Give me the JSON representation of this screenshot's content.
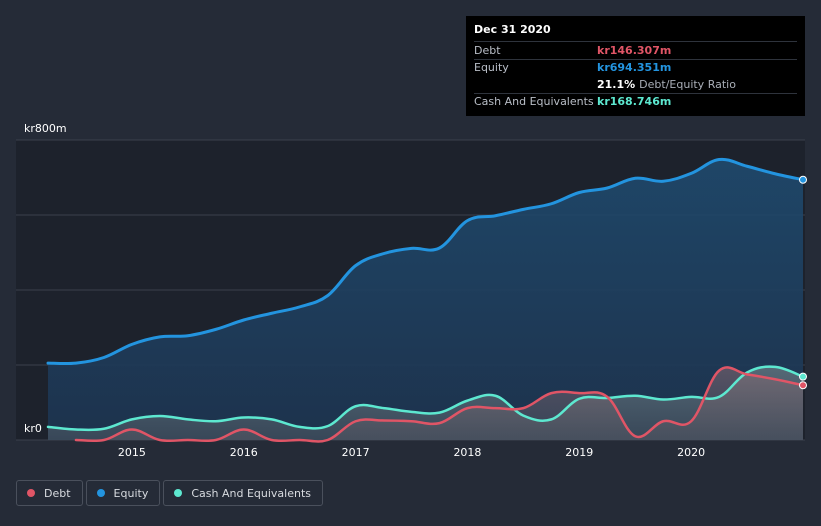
{
  "tooltip": {
    "date": "Dec 31 2020",
    "rows": [
      {
        "label": "Debt",
        "value": "kr146.307m",
        "color": "#e05566"
      },
      {
        "label": "Equity",
        "value": "kr694.351m",
        "color": "#2394df"
      },
      {
        "label": "Cash And Equivalents",
        "value": "kr168.746m",
        "color": "#5de8d0"
      }
    ],
    "ratio_pct": "21.1%",
    "ratio_label": "Debt/Equity Ratio"
  },
  "legend": [
    {
      "label": "Debt",
      "color": "#e05566"
    },
    {
      "label": "Equity",
      "color": "#2394df"
    },
    {
      "label": "Cash And Equivalents",
      "color": "#5de8d0"
    }
  ],
  "chart_data": {
    "type": "area",
    "title": "",
    "xlabel": "",
    "ylabel": "",
    "y_top_label": "kr800m",
    "y_bottom_label": "kr0",
    "ylim": [
      0,
      800
    ],
    "xlim": [
      2014.25,
      2021.0
    ],
    "x_ticks": [
      2015,
      2016,
      2017,
      2018,
      2019,
      2020
    ],
    "x_tick_labels": [
      "2015",
      "2016",
      "2017",
      "2018",
      "2019",
      "2020"
    ],
    "series": [
      {
        "name": "Equity",
        "color": "#2394df",
        "points": [
          [
            2014.25,
            205
          ],
          [
            2014.5,
            205
          ],
          [
            2014.75,
            220
          ],
          [
            2015.0,
            255
          ],
          [
            2015.25,
            275
          ],
          [
            2015.5,
            278
          ],
          [
            2015.75,
            295
          ],
          [
            2016.0,
            320
          ],
          [
            2016.25,
            338
          ],
          [
            2016.5,
            355
          ],
          [
            2016.75,
            385
          ],
          [
            2017.0,
            465
          ],
          [
            2017.25,
            497
          ],
          [
            2017.5,
            511
          ],
          [
            2017.75,
            512
          ],
          [
            2018.0,
            585
          ],
          [
            2018.25,
            598
          ],
          [
            2018.5,
            615
          ],
          [
            2018.75,
            630
          ],
          [
            2019.0,
            660
          ],
          [
            2019.25,
            672
          ],
          [
            2019.5,
            698
          ],
          [
            2019.75,
            690
          ],
          [
            2020.0,
            711
          ],
          [
            2020.25,
            748
          ],
          [
            2020.5,
            730
          ],
          [
            2020.75,
            710
          ],
          [
            2021.0,
            694
          ]
        ]
      },
      {
        "name": "Cash And Equivalents",
        "color": "#5de8d0",
        "points": [
          [
            2014.25,
            35
          ],
          [
            2014.5,
            28
          ],
          [
            2014.75,
            30
          ],
          [
            2015.0,
            55
          ],
          [
            2015.25,
            64
          ],
          [
            2015.5,
            55
          ],
          [
            2015.75,
            50
          ],
          [
            2016.0,
            60
          ],
          [
            2016.25,
            55
          ],
          [
            2016.5,
            35
          ],
          [
            2016.75,
            37
          ],
          [
            2017.0,
            90
          ],
          [
            2017.25,
            85
          ],
          [
            2017.5,
            75
          ],
          [
            2017.75,
            73
          ],
          [
            2018.0,
            105
          ],
          [
            2018.25,
            118
          ],
          [
            2018.5,
            65
          ],
          [
            2018.75,
            55
          ],
          [
            2019.0,
            110
          ],
          [
            2019.25,
            112
          ],
          [
            2019.5,
            118
          ],
          [
            2019.75,
            108
          ],
          [
            2020.0,
            115
          ],
          [
            2020.25,
            115
          ],
          [
            2020.5,
            180
          ],
          [
            2020.75,
            195
          ],
          [
            2021.0,
            169
          ]
        ]
      },
      {
        "name": "Debt",
        "color": "#e05566",
        "points": [
          [
            2014.5,
            0
          ],
          [
            2014.75,
            0
          ],
          [
            2015.0,
            28
          ],
          [
            2015.25,
            0
          ],
          [
            2015.5,
            0
          ],
          [
            2015.75,
            0
          ],
          [
            2016.0,
            28
          ],
          [
            2016.25,
            0
          ],
          [
            2016.5,
            0
          ],
          [
            2016.75,
            0
          ],
          [
            2017.0,
            50
          ],
          [
            2017.25,
            52
          ],
          [
            2017.5,
            50
          ],
          [
            2017.75,
            45
          ],
          [
            2018.0,
            85
          ],
          [
            2018.25,
            85
          ],
          [
            2018.5,
            85
          ],
          [
            2018.75,
            125
          ],
          [
            2019.0,
            125
          ],
          [
            2019.25,
            115
          ],
          [
            2019.5,
            10
          ],
          [
            2019.75,
            50
          ],
          [
            2020.0,
            50
          ],
          [
            2020.25,
            185
          ],
          [
            2020.5,
            175
          ],
          [
            2020.75,
            162
          ],
          [
            2021.0,
            146
          ]
        ]
      }
    ]
  }
}
